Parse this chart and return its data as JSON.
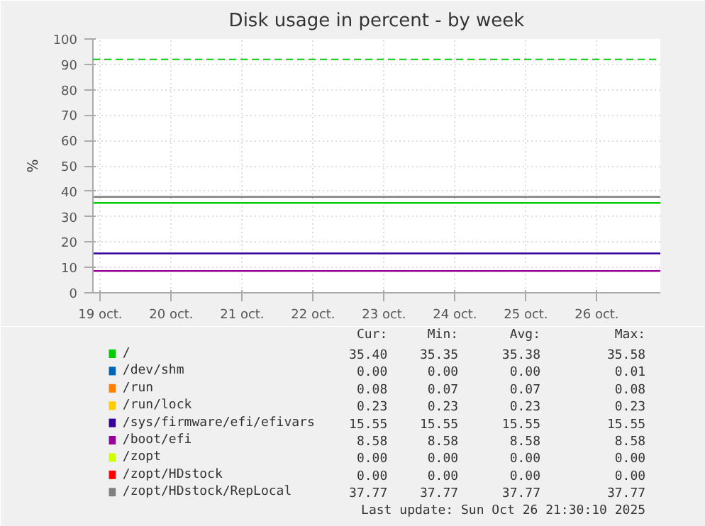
{
  "chart_data": {
    "type": "line",
    "title": "Disk usage in percent - by week",
    "ylabel": "%",
    "x": [
      "2025-10-18T21:30",
      "2025-10-26T21:30"
    ],
    "xlim": [
      "2025-10-18T21:30",
      "2025-10-26T21:30"
    ],
    "xticks": [
      {
        "value": "2025-10-19T00:00",
        "label": "19 oct."
      },
      {
        "value": "2025-10-20T00:00",
        "label": "20 oct."
      },
      {
        "value": "2025-10-21T00:00",
        "label": "21 oct."
      },
      {
        "value": "2025-10-22T00:00",
        "label": "22 oct."
      },
      {
        "value": "2025-10-23T00:00",
        "label": "23 oct."
      },
      {
        "value": "2025-10-24T00:00",
        "label": "24 oct."
      },
      {
        "value": "2025-10-25T00:00",
        "label": "25 oct."
      },
      {
        "value": "2025-10-26T00:00",
        "label": "26 oct."
      }
    ],
    "ylim": [
      0,
      100
    ],
    "yticks": [
      0,
      10,
      20,
      30,
      40,
      50,
      60,
      70,
      80,
      90,
      100
    ],
    "grid": true,
    "legend": "bottom",
    "series": [
      {
        "name": "/",
        "color": "#00cc00",
        "values": [
          35.4,
          35.4
        ]
      },
      {
        "name": "/dev/shm",
        "color": "#0066b3",
        "values": [
          null,
          null
        ]
      },
      {
        "name": "/run",
        "color": "#ff8000",
        "values": [
          null,
          null
        ]
      },
      {
        "name": "/run/lock",
        "color": "#ffcc00",
        "values": [
          null,
          null
        ]
      },
      {
        "name": "/sys/firmware/efi/efivars",
        "color": "#330099",
        "values": [
          15.5,
          15.5
        ]
      },
      {
        "name": "/boot/efi",
        "color": "#990099",
        "values": [
          8.6,
          8.6
        ]
      },
      {
        "name": "/zopt",
        "color": "#ccff00",
        "values": [
          null,
          null
        ]
      },
      {
        "name": "/zopt/HDstock",
        "color": "#ff0000",
        "values": [
          null,
          null
        ]
      },
      {
        "name": "/zopt/HDstock/RepLocal",
        "color": "#808080",
        "values": [
          37.8,
          37.8
        ]
      }
    ],
    "ref_lines": [
      {
        "axis": "y",
        "value": 92,
        "color": "#00cc00",
        "line_style": "dashed"
      }
    ],
    "annotations": [
      "Cur:",
      "Min:",
      "Avg:",
      "Max:",
      "35.40",
      "35.35",
      "35.38",
      "35.58",
      "0.00",
      "0.00",
      "0.00",
      "0.01",
      "0.08",
      "0.07",
      "0.07",
      "0.08",
      "0.23",
      "0.23",
      "0.23",
      "0.23",
      "15.55",
      "15.55",
      "15.55",
      "15.55",
      "8.58",
      "8.58",
      "8.58",
      "8.58",
      "0.00",
      "0.00",
      "0.00",
      "0.00",
      "0.00",
      "0.00",
      "0.00",
      "0.00",
      "37.77",
      "37.77",
      "37.77",
      "37.77",
      "Last update: Sun Oct 26 21:30:10 2025"
    ]
  }
}
